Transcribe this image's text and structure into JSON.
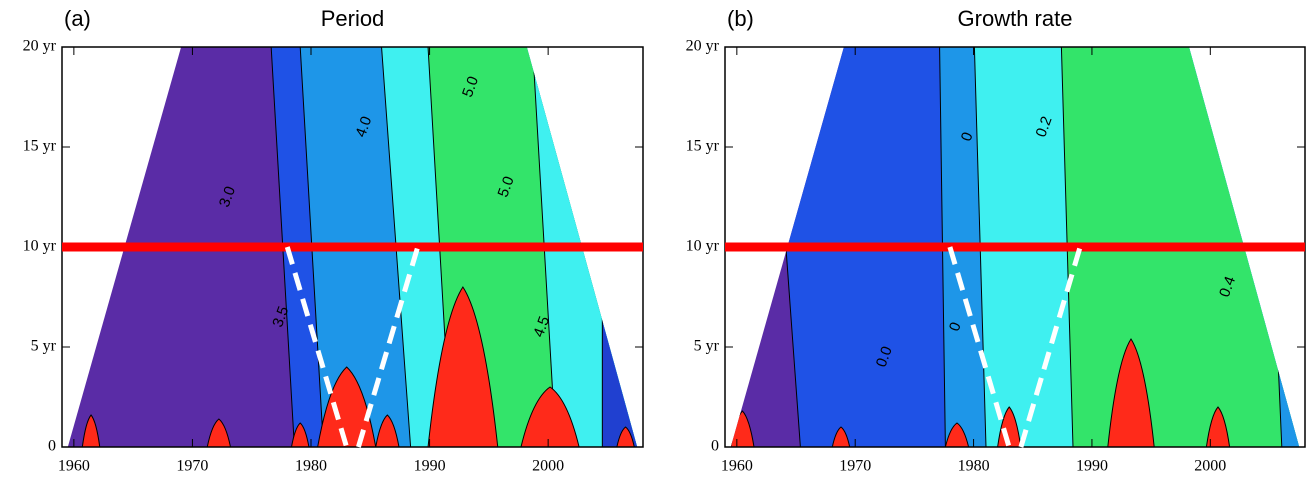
{
  "chart_data": [
    {
      "type": "contour",
      "panel": "(a)",
      "title": "Period",
      "xlim": [
        1959,
        2008
      ],
      "xticks": [
        1960,
        1970,
        1980,
        1990,
        2000
      ],
      "ylim": [
        0,
        20
      ],
      "yticks": [
        0,
        {
          "value": 5,
          "label": "5 yr"
        },
        {
          "value": 10,
          "label": "10 yr"
        },
        {
          "value": 15,
          "label": "15 yr"
        },
        {
          "value": 20,
          "label": "20 yr"
        }
      ],
      "hline": 10,
      "hline_color": "#ff0000",
      "dashed_lines": [
        {
          "x": [
            1978,
            1983
          ],
          "y": [
            10,
            0
          ]
        },
        {
          "x": [
            1984,
            1989
          ],
          "y": [
            0,
            10
          ]
        }
      ],
      "contour_labels": [
        {
          "text": "3.0",
          "x": 1973,
          "y": 12.5
        },
        {
          "text": "4.0",
          "x": 1984.5,
          "y": 16
        },
        {
          "text": "5.0",
          "x": 1993.5,
          "y": 18
        },
        {
          "text": "5.0",
          "x": 1996.5,
          "y": 13
        },
        {
          "text": "3.5",
          "x": 1977.5,
          "y": 6.5
        },
        {
          "text": "4.5",
          "x": 1999.5,
          "y": 6
        }
      ]
    },
    {
      "type": "contour",
      "panel": "(b)",
      "title": "Growth rate",
      "xlim": [
        1959,
        2008
      ],
      "xticks": [
        1960,
        1970,
        1980,
        1990,
        2000
      ],
      "ylim": [
        0,
        20
      ],
      "yticks": [
        0,
        {
          "value": 5,
          "label": "5 yr"
        },
        {
          "value": 10,
          "label": "10 yr"
        },
        {
          "value": 15,
          "label": "15 yr"
        },
        {
          "value": 20,
          "label": "20 yr"
        }
      ],
      "hline": 10,
      "hline_color": "#ff0000",
      "dashed_lines": [
        {
          "x": [
            1978,
            1983
          ],
          "y": [
            10,
            0
          ]
        },
        {
          "x": [
            1984,
            1989
          ],
          "y": [
            0,
            10
          ]
        }
      ],
      "contour_labels": [
        {
          "text": "0",
          "x": 1979.5,
          "y": 15.5
        },
        {
          "text": "0.2",
          "x": 1986,
          "y": 16
        },
        {
          "text": "0.4",
          "x": 2001.5,
          "y": 8
        },
        {
          "text": "0",
          "x": 1978.5,
          "y": 6
        },
        {
          "text": "0.0",
          "x": 1972.5,
          "y": 4.5
        }
      ]
    }
  ]
}
